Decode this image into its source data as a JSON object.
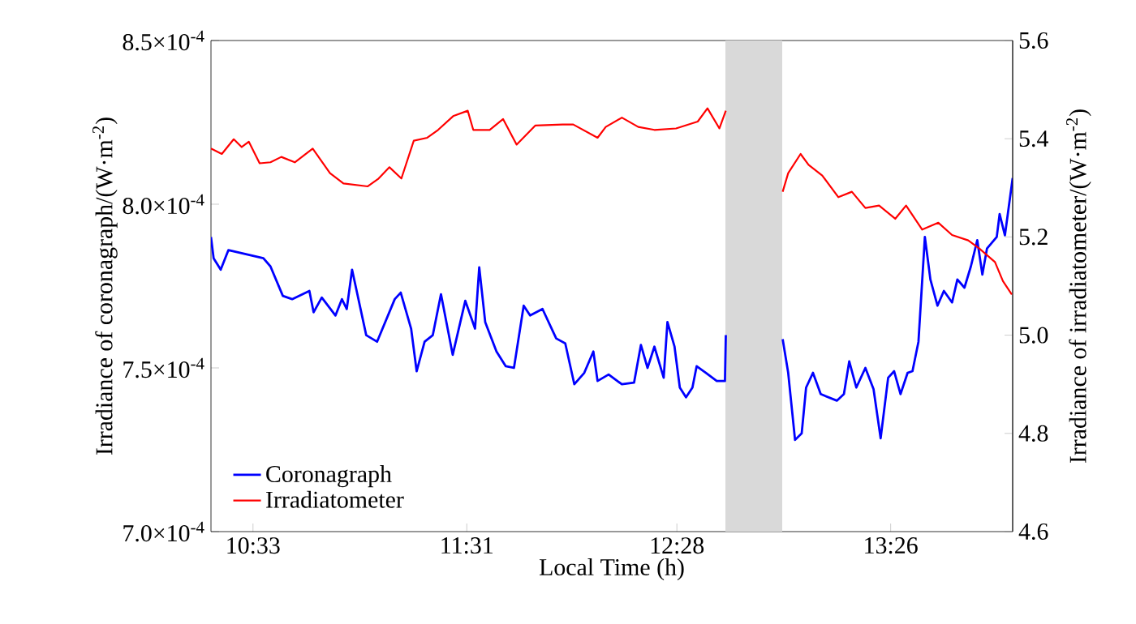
{
  "chart_data": {
    "type": "line",
    "xlabel": "Local Time (h)",
    "ylabel": "Irradiance of coronagraph/(W·m$^{-2}$)",
    "y2label": "Irradiance of irradiatometer/(W·m$^{-2}$)",
    "xlim": [
      10.36,
      13.985
    ],
    "xticks": [
      {
        "value": 10.55,
        "label": "10:33"
      },
      {
        "value": 11.5167,
        "label": "11:31"
      },
      {
        "value": 12.4667,
        "label": "12:28"
      },
      {
        "value": 13.4333,
        "label": "13:26"
      }
    ],
    "ylim": [
      0.0007,
      0.00085
    ],
    "yticks": [
      {
        "value": 0.0007,
        "label": "7.0×10$^{-4}$"
      },
      {
        "value": 0.00075,
        "label": "7.5×10$^{-4}$"
      },
      {
        "value": 0.0008,
        "label": "8.0×10$^{-4}$"
      },
      {
        "value": 0.00085,
        "label": "8.5×10$^{-4}$"
      }
    ],
    "y2lim": [
      4.6,
      5.6
    ],
    "y2ticks": [
      4.6,
      4.8,
      {
        "value": 5,
        "label": "5.0"
      },
      5.2,
      5.4,
      5.6
    ],
    "legend": "bottom left",
    "bands": [
      {
        "axis": "x",
        "from": 12.686,
        "to": 12.943,
        "color": "#d9d9d9"
      }
    ],
    "series": [
      {
        "name": "Coronagraph",
        "color": "#0000ff",
        "x": [
          10.36,
          10.372,
          10.404,
          10.439,
          10.597,
          10.629,
          10.685,
          10.727,
          10.805,
          10.824,
          10.861,
          10.923,
          10.952,
          10.974,
          10.998,
          11.062,
          11.111,
          11.191,
          11.218,
          11.265,
          11.29,
          11.326,
          11.363,
          11.4,
          11.453,
          11.51,
          11.554,
          11.573,
          11.6,
          11.651,
          11.693,
          11.73,
          11.774,
          11.803,
          11.859,
          11.921,
          11.962,
          12.003,
          12.048,
          12.089,
          12.108,
          12.158,
          12.218,
          12.273,
          12.304,
          12.334,
          12.365,
          12.407,
          12.424,
          12.456,
          12.48,
          12.508,
          12.537,
          12.556,
          12.598,
          12.647,
          12.684,
          12.688,
          12.8,
          12.945,
          12.97,
          13.001,
          13.031,
          13.051,
          13.082,
          13.117,
          13.19,
          13.222,
          13.246,
          13.278,
          13.319,
          13.356,
          13.388,
          13.422,
          13.449,
          13.478,
          13.51,
          13.532,
          13.559,
          13.588,
          13.613,
          13.645,
          13.674,
          13.711,
          13.735,
          13.767,
          13.796,
          13.825,
          13.848,
          13.869,
          13.913,
          13.926,
          13.95,
          13.985
        ],
        "values": [
          0.00079,
          0.0007835,
          0.00078,
          0.000786,
          0.0007835,
          0.000781,
          0.000772,
          0.000771,
          0.0007735,
          0.000767,
          0.0007715,
          0.000766,
          0.000771,
          0.000768,
          0.00078,
          0.00076,
          0.000758,
          0.000771,
          0.000773,
          0.000762,
          0.000749,
          0.000758,
          0.00076,
          0.0007725,
          0.000754,
          0.0007705,
          0.000762,
          0.0007807,
          0.000764,
          0.000755,
          0.0007505,
          0.00075,
          0.000769,
          0.000766,
          0.000768,
          0.000759,
          0.0007575,
          0.000745,
          0.0007485,
          0.000755,
          0.000746,
          0.000748,
          0.000745,
          0.0007455,
          0.000757,
          0.00075,
          0.0007565,
          0.000747,
          0.000764,
          0.0007565,
          0.000744,
          0.000741,
          0.000744,
          0.0007505,
          0.0007485,
          0.000746,
          0.000746,
          0.00076,
          null,
          0.0007588,
          0.0007485,
          0.000728,
          0.00073,
          0.000744,
          0.0007485,
          0.000742,
          0.00074,
          0.000742,
          0.000752,
          0.000744,
          0.00075,
          0.0007435,
          0.0007285,
          0.000747,
          0.000749,
          0.000742,
          0.0007485,
          0.000749,
          0.000758,
          0.00079,
          0.000777,
          0.000769,
          0.0007735,
          0.00077,
          0.000777,
          0.0007745,
          0.000781,
          0.000789,
          0.0007785,
          0.0007865,
          0.00079,
          0.000797,
          0.0007905,
          0.000808
        ]
      },
      {
        "name": "Irradiatometer",
        "color": "#ff0000",
        "axis": "y2",
        "x": [
          10.36,
          10.409,
          10.463,
          10.499,
          10.531,
          10.58,
          10.629,
          10.678,
          10.739,
          10.82,
          10.898,
          10.959,
          11.069,
          11.118,
          11.167,
          11.221,
          11.277,
          11.338,
          11.387,
          11.455,
          11.521,
          11.546,
          11.62,
          11.681,
          11.742,
          11.827,
          11.95,
          11.998,
          12.108,
          12.145,
          12.218,
          12.292,
          12.365,
          12.463,
          12.561,
          12.605,
          12.659,
          12.688,
          12.8,
          12.945,
          12.97,
          13.026,
          13.062,
          13.124,
          13.197,
          13.258,
          13.319,
          13.381,
          13.454,
          13.503,
          13.576,
          13.649,
          13.711,
          13.784,
          13.833,
          13.905,
          13.941,
          13.981
        ],
        "values": [
          5.38,
          5.369,
          5.399,
          5.383,
          5.394,
          5.35,
          5.352,
          5.363,
          5.352,
          5.38,
          5.33,
          5.309,
          5.303,
          5.319,
          5.342,
          5.319,
          5.396,
          5.402,
          5.418,
          5.446,
          5.457,
          5.418,
          5.418,
          5.44,
          5.388,
          5.427,
          5.429,
          5.429,
          5.402,
          5.424,
          5.443,
          5.424,
          5.418,
          5.421,
          5.435,
          5.462,
          5.421,
          5.457,
          null,
          5.292,
          5.33,
          5.369,
          5.347,
          5.325,
          5.281,
          5.292,
          5.259,
          5.264,
          5.237,
          5.264,
          5.215,
          5.229,
          5.204,
          5.193,
          5.177,
          5.149,
          5.11,
          5.083
        ]
      }
    ]
  }
}
